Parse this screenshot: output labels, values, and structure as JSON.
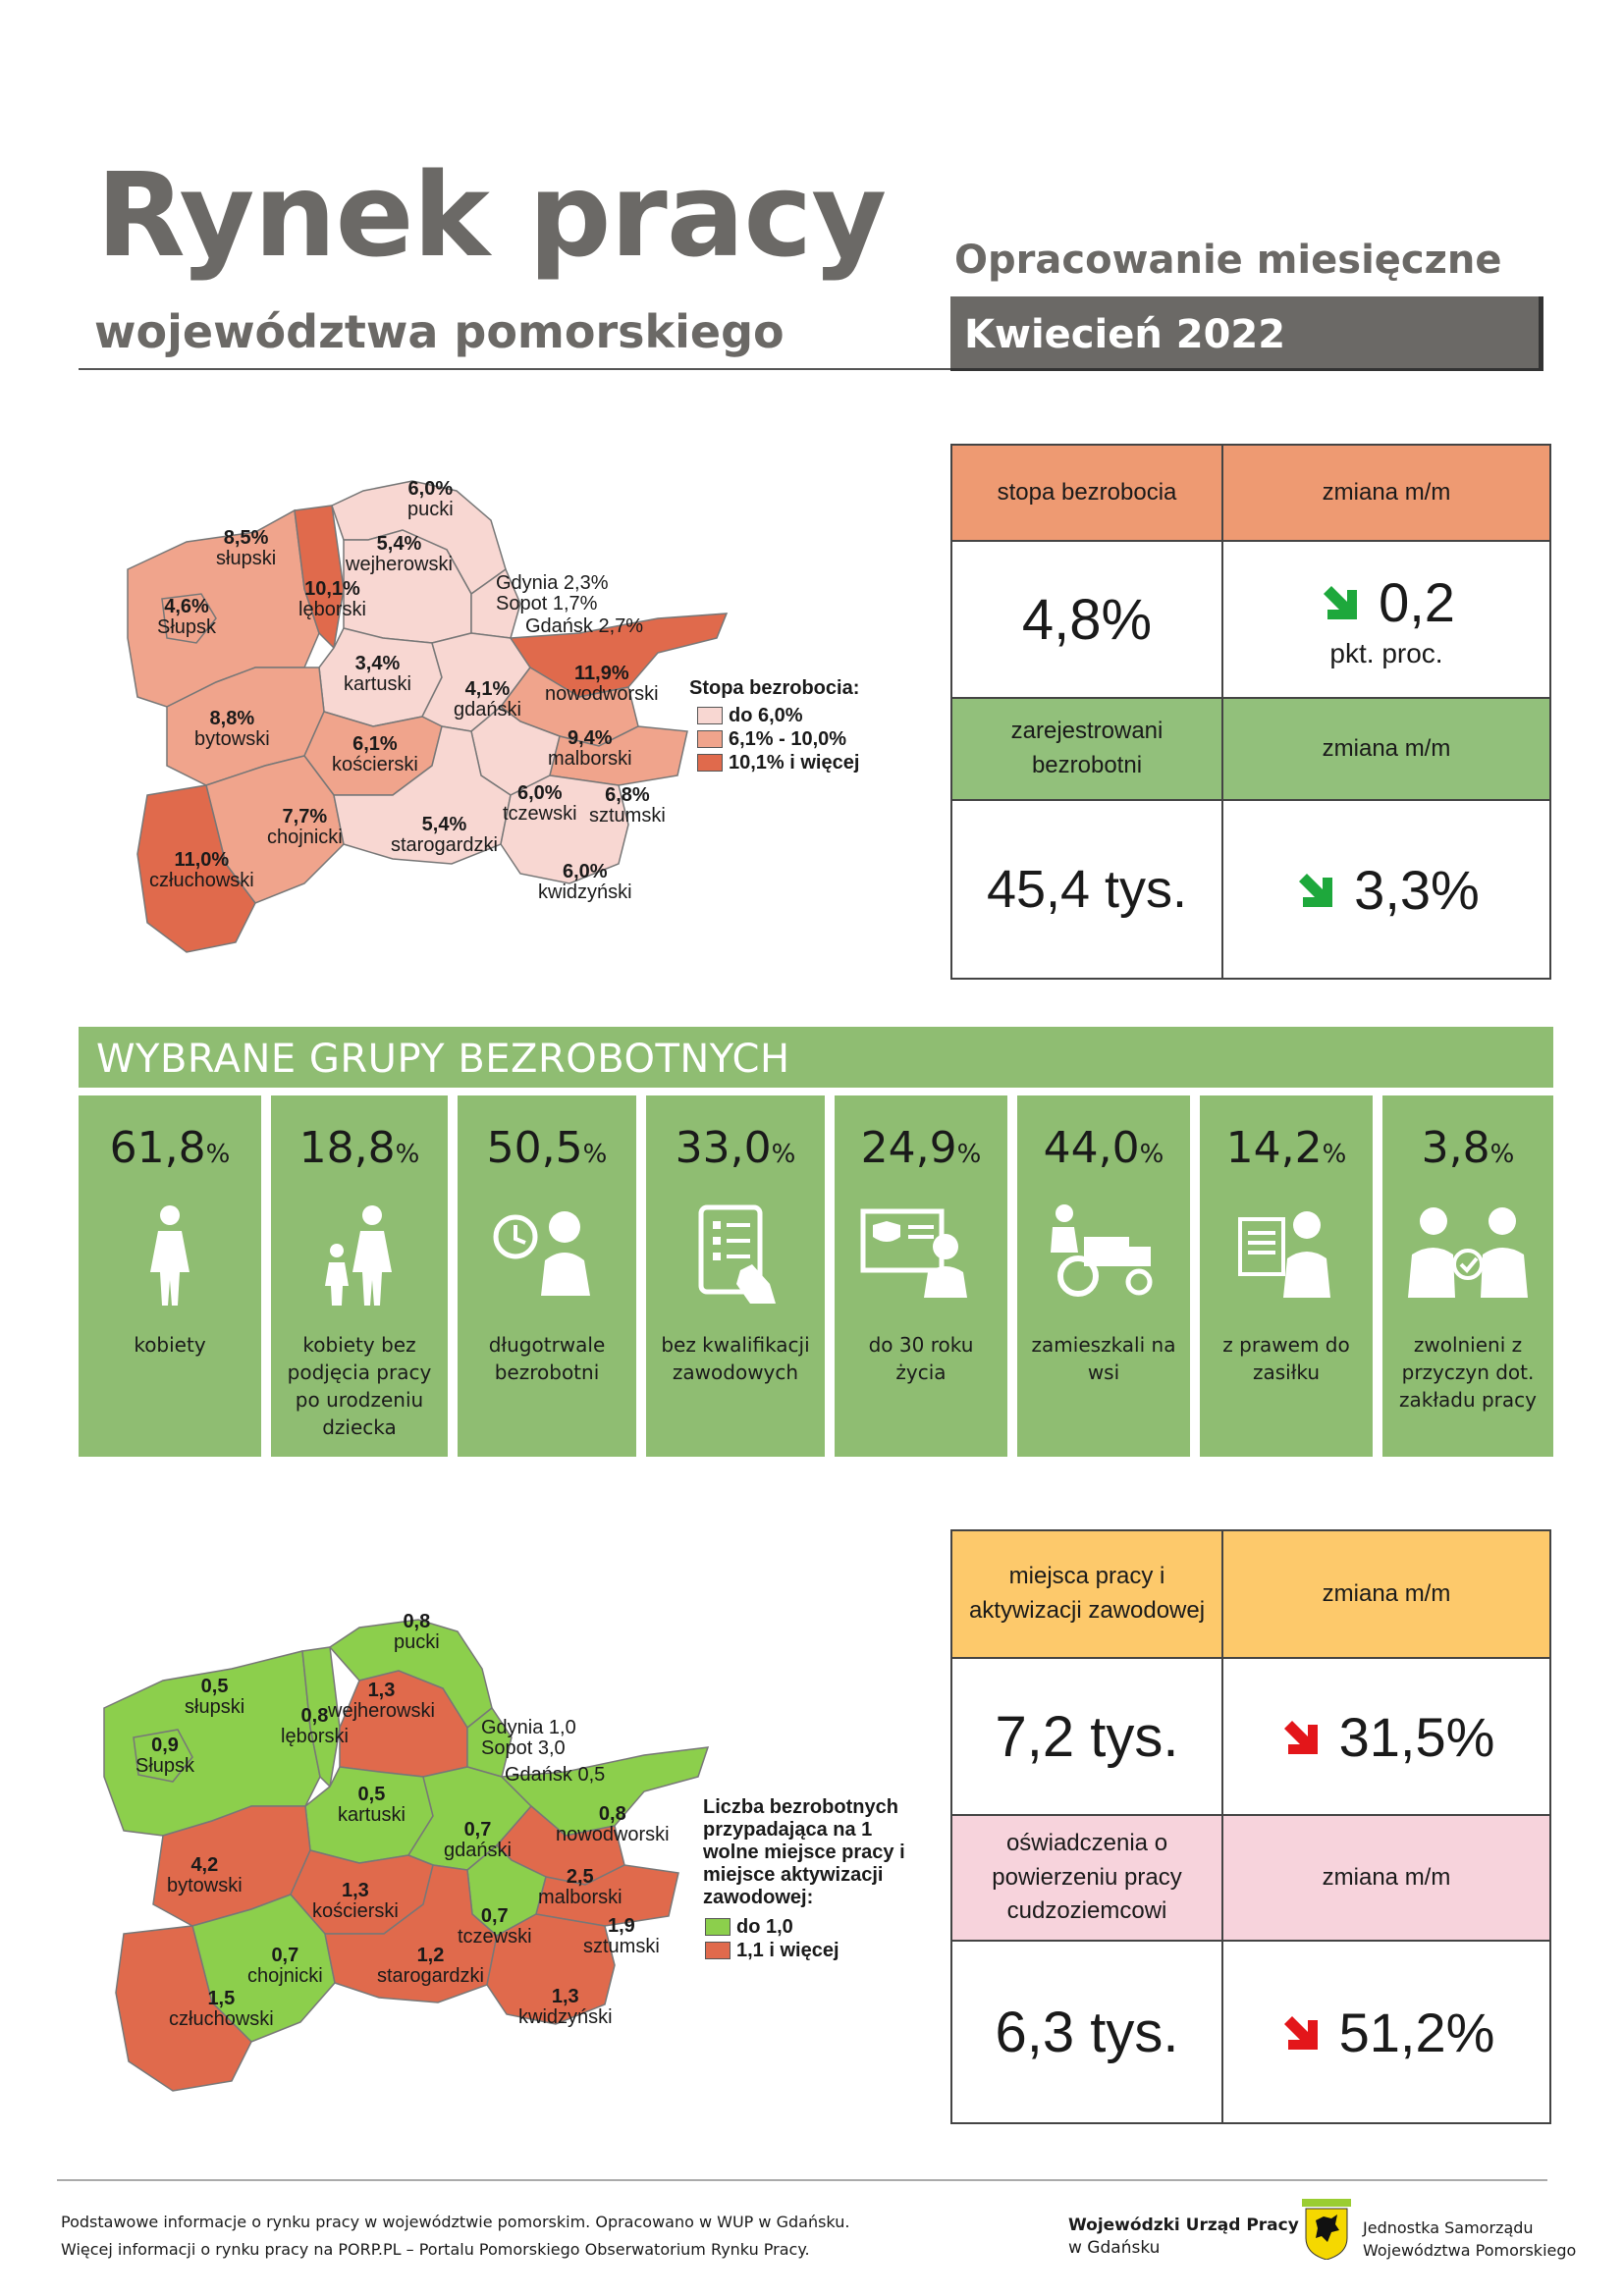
{
  "header": {
    "title": "Rynek pracy",
    "subtitle": "województwa pomorskiego",
    "report_type": "Opracowanie miesięczne",
    "period": "Kwiecień 2022"
  },
  "colors": {
    "brand_gray": "#6b6966",
    "group_green": "#8fbd72",
    "salmon_header": "#ee9a72",
    "green_header": "#92c07b",
    "yellow_header": "#fdc96b",
    "pink_header": "#f7d3dc",
    "arrow_down_green": "#1ea83c",
    "arrow_down_red": "#e3161a"
  },
  "map1": {
    "legend_title": "Stopa bezrobocia:",
    "legend": [
      {
        "label": "do 6,0%",
        "color": "#f8d7d2"
      },
      {
        "label": "6,1% - 10,0%",
        "color": "#f0a48c"
      },
      {
        "label": "10,1% i więcej",
        "color": "#e06a4c"
      }
    ],
    "regions": [
      {
        "value": "6,0%",
        "name": "pucki"
      },
      {
        "value": "8,5%",
        "name": "słupski"
      },
      {
        "value": "5,4%",
        "name": "wejherowski"
      },
      {
        "value": "10,1%",
        "name": "lęborski"
      },
      {
        "value": "4,6%",
        "name": "Słupsk"
      },
      {
        "value": "Gdynia 2,3%",
        "name": "Sopot 1,7%"
      },
      {
        "value": "Gdańsk 2,7%",
        "name": ""
      },
      {
        "value": "3,4%",
        "name": "kartuski"
      },
      {
        "value": "11,9%",
        "name": "nowodworski"
      },
      {
        "value": "4,1%",
        "name": "gdański"
      },
      {
        "value": "8,8%",
        "name": "bytowski"
      },
      {
        "value": "6,1%",
        "name": "kościerski"
      },
      {
        "value": "9,4%",
        "name": "malborski"
      },
      {
        "value": "6,0%",
        "name": "tczewski"
      },
      {
        "value": "6,8%",
        "name": "sztumski"
      },
      {
        "value": "7,7%",
        "name": "chojnicki"
      },
      {
        "value": "5,4%",
        "name": "starogardzki"
      },
      {
        "value": "11,0%",
        "name": "człuchowski"
      },
      {
        "value": "6,0%",
        "name": "kwidzyński"
      }
    ]
  },
  "kpi_top": {
    "rate_label": "stopa bezrobocia",
    "change_label": "zmiana m/m",
    "rate_value": "4,8%",
    "rate_change": "0,2",
    "rate_change_unit": "pkt. proc.",
    "registered_label": "zarejestrowani bezrobotni",
    "registered_change_label": "zmiana m/m",
    "registered_value": "45,4 tys.",
    "registered_change": "3,3%"
  },
  "groups": {
    "title": "WYBRANE GRUPY BEZROBOTNYCH",
    "items": [
      {
        "value": "61,8",
        "unit": "%",
        "label": "kobiety",
        "icon": "woman-icon"
      },
      {
        "value": "18,8",
        "unit": "%",
        "label": "kobiety bez podjęcia pracy po urodzeniu dziecka",
        "icon": "mother-child-icon"
      },
      {
        "value": "50,5",
        "unit": "%",
        "label": "długotrwale bezrobotni",
        "icon": "clock-person-icon"
      },
      {
        "value": "33,0",
        "unit": "%",
        "label": "bez kwalifikacji zawodowych",
        "icon": "tablet-checklist-icon"
      },
      {
        "value": "24,9",
        "unit": "%",
        "label": "do 30 roku życia",
        "icon": "young-person-laptop-icon"
      },
      {
        "value": "44,0",
        "unit": "%",
        "label": "zamieszkali na wsi",
        "icon": "tractor-icon"
      },
      {
        "value": "14,2",
        "unit": "%",
        "label": "z prawem do zasiłku",
        "icon": "person-document-icon"
      },
      {
        "value": "3,8",
        "unit": "%",
        "label": "zwolnieni z przyczyn dot. zakładu pracy",
        "icon": "handshake-people-icon"
      }
    ]
  },
  "map2": {
    "legend_title": "Liczba bezrobotnych przypadająca na 1 wolne miejsce pracy i miejsce aktywizacji zawodowej:",
    "legend": [
      {
        "label": "do 1,0",
        "color": "#8ccf4c"
      },
      {
        "label": "1,1 i więcej",
        "color": "#e06a4c"
      }
    ],
    "regions": [
      {
        "value": "0,8",
        "name": "pucki"
      },
      {
        "value": "0,5",
        "name": "słupski"
      },
      {
        "value": "1,3",
        "name": "wejherowski"
      },
      {
        "value": "0,8",
        "name": "lęborski"
      },
      {
        "value": "0,9",
        "name": "Słupsk"
      },
      {
        "value": "Gdynia 1,0",
        "name": "Sopot 3,0"
      },
      {
        "value": "Gdańsk 0,5",
        "name": ""
      },
      {
        "value": "0,5",
        "name": "kartuski"
      },
      {
        "value": "0,8",
        "name": "nowodworski"
      },
      {
        "value": "0,7",
        "name": "gdański"
      },
      {
        "value": "4,2",
        "name": "bytowski"
      },
      {
        "value": "1,3",
        "name": "kościerski"
      },
      {
        "value": "2,5",
        "name": "malborski"
      },
      {
        "value": "0,7",
        "name": "tczewski"
      },
      {
        "value": "1,9",
        "name": "sztumski"
      },
      {
        "value": "0,7",
        "name": "chojnicki"
      },
      {
        "value": "1,2",
        "name": "starogardzki"
      },
      {
        "value": "1,5",
        "name": "człuchowski"
      },
      {
        "value": "1,3",
        "name": "kwidzyński"
      }
    ]
  },
  "kpi_bottom": {
    "jobs_label": "miejsca pracy i aktywizacji zawodowej",
    "change_label": "zmiana m/m",
    "jobs_value": "7,2 tys.",
    "jobs_change": "31,5%",
    "permits_label": "oświadczenia o powierzeniu pracy cudzoziemcowi",
    "permits_change_label": "zmiana m/m",
    "permits_value": "6,3 tys.",
    "permits_change": "51,2%"
  },
  "footer": {
    "line1": "Podstawowe informacje o rynku pracy w województwie pomorskim. Opracowano w WUP w Gdańsku.",
    "line2": "Więcej informacji o rynku pracy na PORP.PL – Portalu Pomorskiego Obserwatorium Rynku Pracy.",
    "org_name": "Wojewódzki Urząd Pracy",
    "org_city": "w Gdańsku",
    "jst_line1": "Jednostka Samorządu",
    "jst_line2": "Województwa Pomorskiego"
  }
}
